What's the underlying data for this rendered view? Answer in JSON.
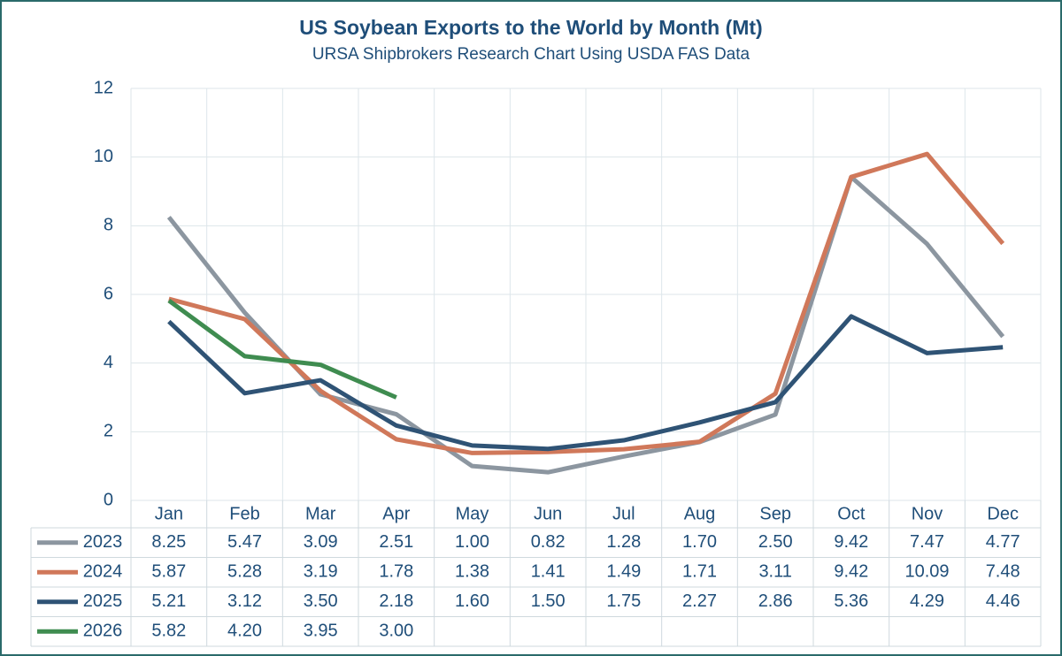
{
  "chart_data": {
    "type": "line",
    "title": "US Soybean Exports to the World by Month (Mt)",
    "subtitle": "URSA Shipbrokers Research Chart Using USDA FAS Data",
    "categories": [
      "Jan",
      "Feb",
      "Mar",
      "Apr",
      "May",
      "Jun",
      "Jul",
      "Aug",
      "Sep",
      "Oct",
      "Nov",
      "Dec"
    ],
    "ylim": [
      0,
      12
    ],
    "yticks": [
      0,
      2,
      4,
      6,
      8,
      10,
      12
    ],
    "grid": true,
    "series": [
      {
        "name": "2023",
        "color": "#8c96a0",
        "values": [
          8.25,
          5.47,
          3.09,
          2.51,
          1.0,
          0.82,
          1.28,
          1.7,
          2.5,
          9.42,
          7.47,
          4.77
        ],
        "value_labels": [
          "8.25",
          "5.47",
          "3.09",
          "2.51",
          "1.00",
          "0.82",
          "1.28",
          "1.70",
          "2.50",
          "9.42",
          "7.47",
          "4.77"
        ]
      },
      {
        "name": "2024",
        "color": "#d0785a",
        "values": [
          5.87,
          5.28,
          3.19,
          1.78,
          1.38,
          1.41,
          1.49,
          1.71,
          3.11,
          9.42,
          10.09,
          7.48
        ],
        "value_labels": [
          "5.87",
          "5.28",
          "3.19",
          "1.78",
          "1.38",
          "1.41",
          "1.49",
          "1.71",
          "3.11",
          "9.42",
          "10.09",
          "7.48"
        ]
      },
      {
        "name": "2025",
        "color": "#2f5375",
        "values": [
          5.21,
          3.12,
          3.5,
          2.18,
          1.6,
          1.5,
          1.75,
          2.27,
          2.86,
          5.36,
          4.29,
          4.46
        ],
        "value_labels": [
          "5.21",
          "3.12",
          "3.50",
          "2.18",
          "1.60",
          "1.50",
          "1.75",
          "2.27",
          "2.86",
          "5.36",
          "4.29",
          "4.46"
        ]
      },
      {
        "name": "2026",
        "color": "#3f8c50",
        "values": [
          5.82,
          4.2,
          3.95,
          3.0,
          null,
          null,
          null,
          null,
          null,
          null,
          null,
          null
        ],
        "value_labels": [
          "5.82",
          "4.20",
          "3.95",
          "3.00",
          null,
          null,
          null,
          null,
          null,
          null,
          null,
          null
        ]
      }
    ]
  }
}
